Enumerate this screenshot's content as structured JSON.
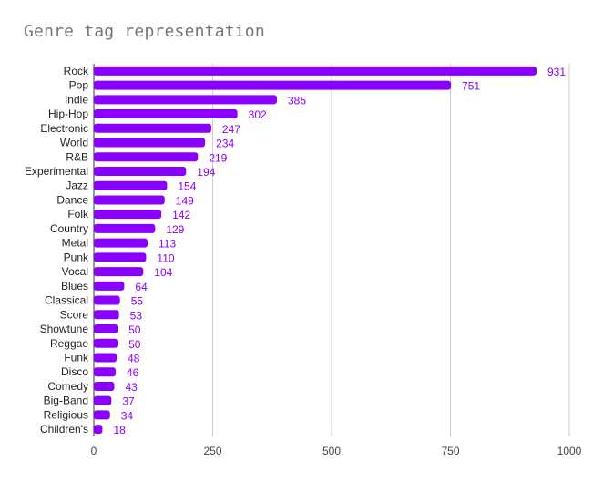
{
  "chart_data": {
    "type": "bar",
    "orientation": "horizontal",
    "title": "Genre tag representation",
    "xlabel": "",
    "ylabel": "",
    "xlim": [
      0,
      1000
    ],
    "xticks": [
      0,
      250,
      500,
      750,
      1000
    ],
    "grid": true,
    "legend": "none",
    "bar_color": "#8a00ff",
    "label_color": "#8a00ff",
    "categories": [
      "Rock",
      "Pop",
      "Indie",
      "Hip-Hop",
      "Electronic",
      "World",
      "R&B",
      "Experimental",
      "Jazz",
      "Dance",
      "Folk",
      "Country",
      "Metal",
      "Punk",
      "Vocal",
      "Blues",
      "Classical",
      "Score",
      "Showtune",
      "Reggae",
      "Funk",
      "Disco",
      "Comedy",
      "Big-Band",
      "Religious",
      "Children's"
    ],
    "values": [
      931,
      751,
      385,
      302,
      247,
      234,
      219,
      194,
      154,
      149,
      142,
      129,
      113,
      110,
      104,
      64,
      55,
      53,
      50,
      50,
      48,
      46,
      43,
      37,
      34,
      18
    ]
  }
}
